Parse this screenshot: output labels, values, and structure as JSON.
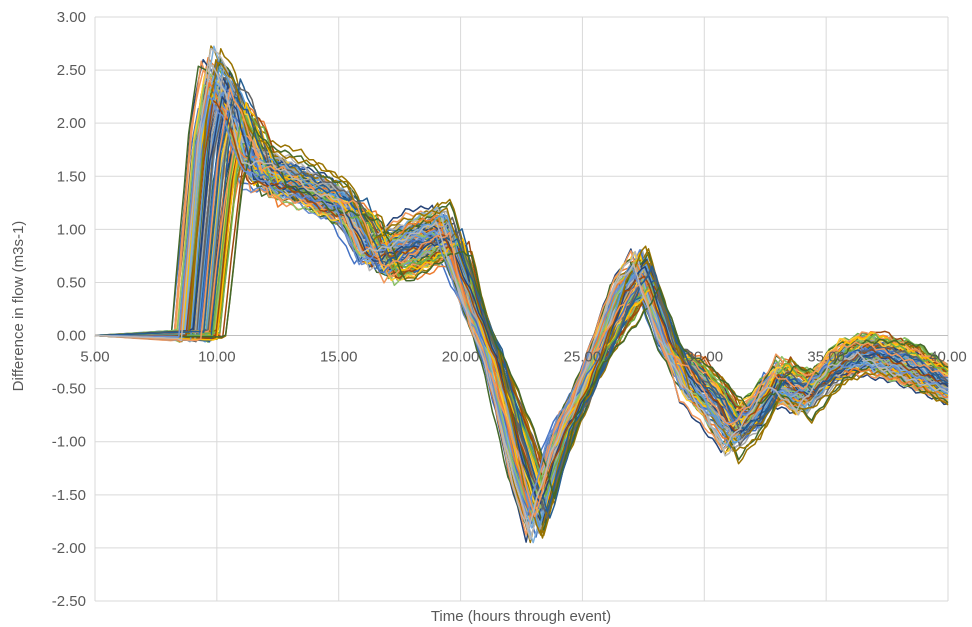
{
  "chart_data": {
    "type": "line",
    "title": "",
    "xlabel": "Time (hours through event)",
    "ylabel": "Difference in flow (m3s-1)",
    "xlim": [
      5,
      40
    ],
    "ylim": [
      -2.5,
      3.0
    ],
    "x_ticks": [
      5,
      10,
      15,
      20,
      25,
      30,
      35,
      40
    ],
    "x_tick_labels": [
      "5.00",
      "10.00",
      "15.00",
      "20.00",
      "25.00",
      "30.00",
      "35.00",
      "40.00"
    ],
    "y_ticks": [
      3.0,
      2.5,
      2.0,
      1.5,
      1.0,
      0.5,
      0.0,
      -0.5,
      -1.0,
      -1.5,
      -2.0,
      -2.5
    ],
    "y_tick_labels": [
      "3.00",
      "2.50",
      "2.00",
      "1.50",
      "1.00",
      "0.50",
      "0.00",
      "-0.50",
      "-1.00",
      "-1.50",
      "-2.00",
      "-2.50"
    ],
    "grid": true,
    "legend": "none",
    "series_colors": [
      "#4472C4",
      "#ED7D31",
      "#A5A5A5",
      "#FFC000",
      "#5B9BD5",
      "#70AD47",
      "#264478",
      "#9E480E",
      "#636363",
      "#997300",
      "#255E91",
      "#43682B",
      "#698ED0",
      "#F1975A",
      "#B7B7B7",
      "#FFCD33",
      "#7CAFDD",
      "#8CC168"
    ],
    "series": [
      {
        "x": [
          5,
          8.5,
          9.2,
          9.6,
          10.2,
          11,
          12,
          13,
          14,
          15,
          16,
          17,
          18,
          19.1,
          20.3,
          21.2,
          22.3,
          23,
          24,
          25,
          26.5,
          27.3,
          28.3,
          29.3,
          30.3,
          31,
          32,
          32.8,
          34,
          35.3,
          36.5,
          38,
          40
        ],
        "y": [
          0,
          0,
          1.8,
          2.4,
          2.2,
          1.65,
          1.55,
          1.45,
          1.35,
          1.25,
          0.75,
          0.85,
          0.95,
          1.0,
          0.3,
          -0.2,
          -1.2,
          -1.7,
          -1.0,
          -0.5,
          0.4,
          0.65,
          0.0,
          -0.45,
          -0.7,
          -0.95,
          -0.75,
          -0.45,
          -0.6,
          -0.3,
          -0.2,
          -0.3,
          -0.5
        ]
      },
      {
        "x": [
          5,
          8.8,
          9.5,
          10.0,
          10.6,
          11.3,
          12.2,
          13.2,
          14.2,
          15.2,
          16.2,
          17.2,
          18.2,
          19.3,
          20.4,
          21.3,
          22.4,
          23.1,
          24,
          25.1,
          26.6,
          27.4,
          28.4,
          29.4,
          30.4,
          31.1,
          32.1,
          32.9,
          34.1,
          35.4,
          36.6,
          38.1,
          40
        ],
        "y": [
          0,
          0,
          1.9,
          2.5,
          2.3,
          1.7,
          1.6,
          1.5,
          1.4,
          1.3,
          0.8,
          0.9,
          1.0,
          1.1,
          0.35,
          -0.15,
          -1.3,
          -1.8,
          -1.05,
          -0.55,
          0.45,
          0.7,
          0.05,
          -0.5,
          -0.75,
          -1.0,
          -0.8,
          -0.5,
          -0.65,
          -0.35,
          -0.25,
          -0.35,
          -0.55
        ]
      },
      {
        "x": [
          5,
          9.1,
          9.8,
          10.3,
          10.9,
          11.6,
          12.5,
          13.5,
          14.5,
          15.5,
          16.5,
          17.5,
          18.5,
          19.5,
          20.5,
          21.4,
          22.5,
          23.2,
          24.1,
          25.2,
          26.7,
          27.5,
          28.5,
          29.5,
          30.5,
          31.2,
          32.2,
          33,
          34.2,
          35.5,
          36.7,
          38.2,
          40
        ],
        "y": [
          0,
          0,
          1.7,
          2.3,
          2.1,
          1.6,
          1.5,
          1.4,
          1.3,
          1.2,
          0.7,
          0.8,
          0.9,
          0.95,
          0.25,
          -0.25,
          -1.15,
          -1.65,
          -0.95,
          -0.45,
          0.35,
          0.6,
          -0.05,
          -0.4,
          -0.65,
          -0.9,
          -0.7,
          -0.4,
          -0.55,
          -0.25,
          -0.15,
          -0.25,
          -0.45
        ]
      },
      {
        "x": [
          5,
          9.4,
          10.1,
          10.6,
          11.2,
          11.9,
          12.8,
          13.8,
          14.8,
          15.8,
          16.8,
          17.8,
          18.8,
          19.7,
          20.6,
          21.5,
          22.6,
          23.3,
          24.2,
          25.3,
          26.8,
          27.6,
          28.6,
          29.6,
          30.6,
          31.3,
          32.3,
          33.1,
          34.3,
          35.6,
          36.8,
          38.3,
          40
        ],
        "y": [
          0,
          0,
          1.6,
          2.2,
          2.0,
          1.5,
          1.45,
          1.35,
          1.25,
          1.15,
          0.65,
          0.75,
          0.85,
          0.9,
          0.2,
          -0.3,
          -1.1,
          -1.6,
          -0.9,
          -0.4,
          0.3,
          0.55,
          -0.1,
          -0.35,
          -0.6,
          -0.85,
          -0.65,
          -0.35,
          -0.5,
          -0.2,
          -0.1,
          -0.2,
          -0.4
        ]
      },
      {
        "x": [
          5,
          9.7,
          10.4,
          10.9,
          11.5,
          12.2,
          13.1,
          14.1,
          15.1,
          16.1,
          17.1,
          18.1,
          19.1,
          19.9,
          20.7,
          21.6,
          22.7,
          23.4,
          24.3,
          25.4,
          26.9,
          27.7,
          28.7,
          29.7,
          30.7,
          31.4,
          32.4,
          33.2,
          34.4,
          35.7,
          36.9,
          38.4,
          40
        ],
        "y": [
          0,
          0,
          1.5,
          2.1,
          1.9,
          1.45,
          1.4,
          1.3,
          1.2,
          1.1,
          0.6,
          0.7,
          0.8,
          0.85,
          0.15,
          -0.35,
          -1.05,
          -1.55,
          -0.85,
          -0.35,
          0.25,
          0.5,
          -0.15,
          -0.3,
          -0.55,
          -0.8,
          -0.6,
          -0.3,
          -0.45,
          -0.15,
          -0.05,
          -0.15,
          -0.35
        ]
      },
      {
        "x": [
          5,
          10.0,
          10.7,
          11.2,
          11.8,
          12.5,
          13.4,
          14.4,
          15.4,
          16.4,
          17.4,
          18.4,
          19.4,
          20.1,
          20.8,
          21.7,
          22.8,
          23.5,
          24.4,
          25.5,
          27.0,
          27.8,
          28.8,
          29.8,
          30.8,
          31.5,
          32.5,
          33.3,
          34.5,
          35.8,
          37.0,
          38.5,
          40
        ],
        "y": [
          0,
          0,
          1.4,
          2.0,
          1.85,
          1.4,
          1.35,
          1.25,
          1.15,
          1.05,
          0.55,
          0.65,
          0.75,
          0.8,
          0.1,
          -0.4,
          -1.0,
          -1.5,
          -0.8,
          -0.3,
          0.2,
          0.45,
          -0.2,
          -0.25,
          -0.5,
          -0.75,
          -0.55,
          -0.25,
          -0.4,
          -0.1,
          0.0,
          -0.1,
          -0.3
        ]
      },
      {
        "x": [
          5,
          8.6,
          9.3,
          9.8,
          10.4,
          11.1,
          12.1,
          13.1,
          14.1,
          15.1,
          16.1,
          17.1,
          18.1,
          19.2,
          20.35,
          21.25,
          22.35,
          23.05,
          23.95,
          25.05,
          26.55,
          27.35,
          28.35,
          29.35,
          30.35,
          31.05,
          32.05,
          32.85,
          34.05,
          35.35,
          36.55,
          38.05,
          40
        ],
        "y": [
          0,
          0,
          1.85,
          2.45,
          2.25,
          1.75,
          1.65,
          1.55,
          1.45,
          1.35,
          0.85,
          0.95,
          1.05,
          1.15,
          0.4,
          -0.1,
          -1.25,
          -1.75,
          -1.05,
          -0.5,
          0.5,
          0.75,
          0.1,
          -0.55,
          -0.8,
          -1.05,
          -0.85,
          -0.55,
          -0.7,
          -0.4,
          -0.3,
          -0.4,
          -0.6
        ]
      },
      {
        "x": [
          5,
          8.9,
          9.6,
          10.1,
          10.7,
          11.4,
          12.3,
          13.3,
          14.3,
          15.3,
          16.3,
          17.3,
          18.3,
          19.35,
          20.45,
          21.35,
          22.45,
          23.15,
          24.05,
          25.15,
          26.65,
          27.45,
          28.45,
          29.45,
          30.45,
          31.15,
          32.15,
          32.95,
          34.15,
          35.45,
          36.65,
          38.15,
          40
        ],
        "y": [
          0,
          0,
          1.75,
          2.35,
          2.15,
          1.55,
          1.5,
          1.4,
          1.3,
          1.2,
          0.7,
          0.8,
          0.9,
          0.95,
          0.3,
          -0.2,
          -1.2,
          -1.7,
          -1.0,
          -0.5,
          0.4,
          0.65,
          0.0,
          -0.45,
          -0.7,
          -0.95,
          -0.75,
          -0.45,
          -0.6,
          -0.3,
          -0.2,
          -0.3,
          -0.5
        ]
      }
    ]
  }
}
